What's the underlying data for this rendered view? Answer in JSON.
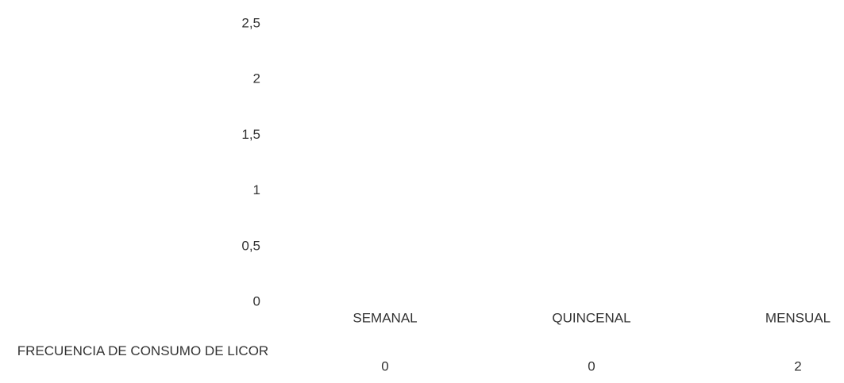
{
  "chart_data": {
    "type": "bar",
    "categories": [
      "SEMANAL",
      "QUINCENAL",
      "MENSUAL"
    ],
    "series": [
      {
        "name": "FRECUENCIA DE CONSUMO DE LICOR",
        "color": "none",
        "values": [
          0,
          0,
          2
        ]
      }
    ],
    "ylim": [
      0,
      2.5
    ],
    "yticks": [
      0,
      {
        "value": 0.5,
        "label": "0,5"
      },
      1,
      {
        "value": 1.5,
        "label": "1,5"
      },
      2,
      {
        "value": 2.5,
        "label": "2,5"
      }
    ],
    "grid": false
  }
}
